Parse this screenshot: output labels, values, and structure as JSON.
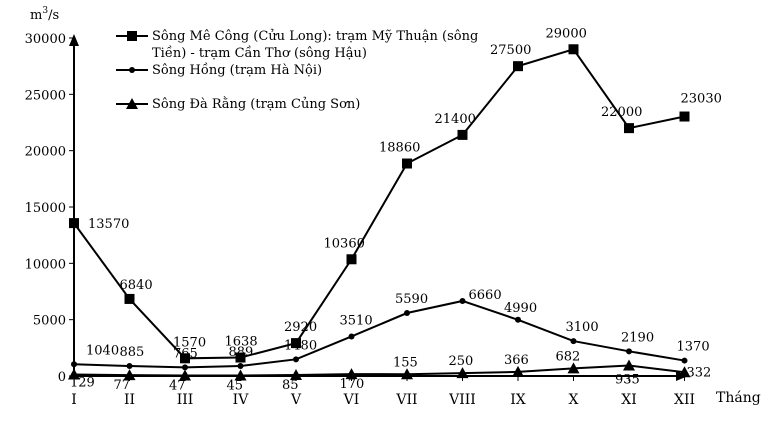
{
  "chart_data": {
    "type": "line",
    "ylabel_unit": "m",
    "ylabel_unit_sup": "3",
    "ylabel_unit_tail": "/s",
    "xlabel": "Tháng",
    "ylim": [
      0,
      30000
    ],
    "yticks": [
      "0",
      "5000",
      "10000",
      "15000",
      "20000",
      "25000",
      "30000"
    ],
    "ytick_values": [
      0,
      5000,
      10000,
      15000,
      20000,
      25000,
      30000
    ],
    "categories": [
      "I",
      "II",
      "III",
      "IV",
      "V",
      "VI",
      "VII",
      "VIII",
      "IX",
      "X",
      "XI",
      "XII"
    ],
    "grid": false,
    "legend_position": "top-left",
    "series": [
      {
        "name_line1": "Sông Mê Công (Cửu Long): trạm Mỹ Thuận (sông",
        "name_line2": "Tiền) - trạm Cần Thơ (sông Hậu)",
        "marker": "square",
        "values": [
          13570,
          6840,
          1570,
          1638,
          2920,
          10360,
          18860,
          21400,
          27500,
          29000,
          22000,
          23030
        ],
        "labels": [
          "13570",
          "6840",
          "1570",
          "1638",
          "2920",
          "10360",
          "18860",
          "21400",
          "27500",
          "29000",
          "22000",
          "23030"
        ]
      },
      {
        "name": "Sông Hồng (trạm Hà Nội)",
        "marker": "circle",
        "values": [
          1040,
          885,
          765,
          889,
          1480,
          3510,
          5590,
          6660,
          4990,
          3100,
          2190,
          1370
        ],
        "labels": [
          "1040",
          "885",
          "765",
          "889",
          "1480",
          "3510",
          "5590",
          "6660",
          "4990",
          "3100",
          "2190",
          "1370"
        ]
      },
      {
        "name": "Sông Đà Rằng (trạm Củng Sơn)",
        "marker": "triangle",
        "values": [
          129,
          77,
          47,
          45,
          85,
          170,
          155,
          250,
          366,
          682,
          935,
          332
        ],
        "labels": [
          "129",
          "77",
          "47",
          "45",
          "85",
          "170",
          "155",
          "250",
          "366",
          "682",
          "935",
          "332"
        ]
      }
    ]
  }
}
